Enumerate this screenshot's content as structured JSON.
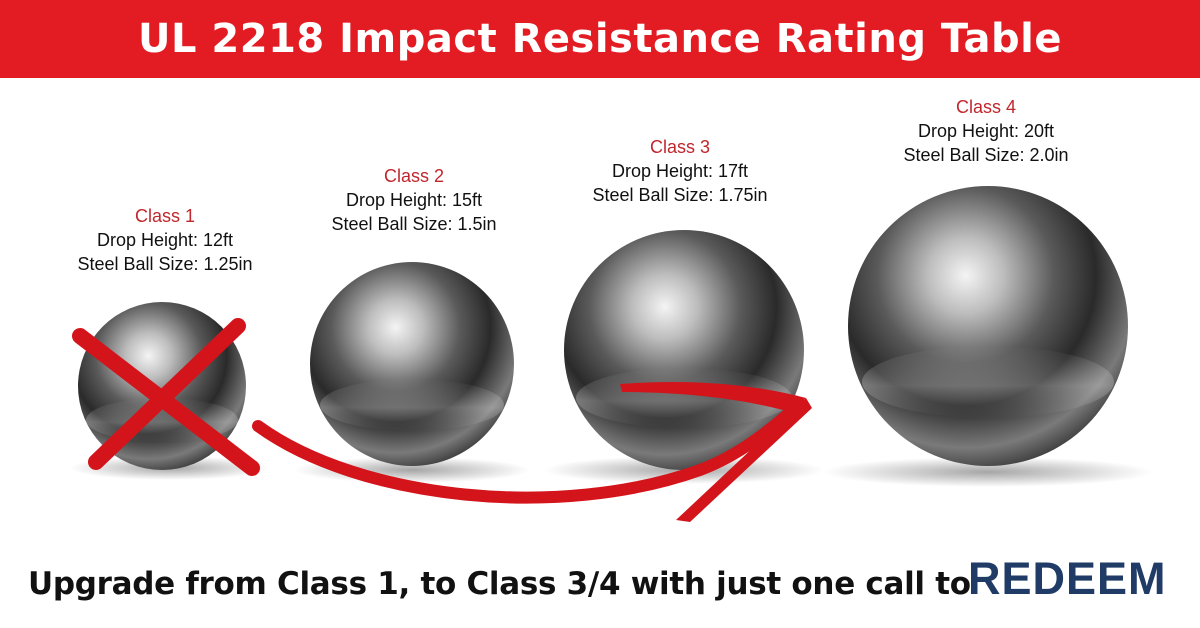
{
  "header": {
    "title": "UL 2218 Impact Resistance Rating Table"
  },
  "classes": [
    {
      "label": "Class 1",
      "drop_height": "Drop Height: 12ft",
      "ball_size": "Steel Ball Size: 1.25in"
    },
    {
      "label": "Class 2",
      "drop_height": "Drop Height: 15ft",
      "ball_size": "Steel Ball Size: 1.5in"
    },
    {
      "label": "Class 3",
      "drop_height": "Drop Height: 17ft",
      "ball_size": "Steel Ball Size: 1.75in"
    },
    {
      "label": "Class 4",
      "drop_height": "Drop Height: 20ft",
      "ball_size": "Steel Ball Size: 2.0in"
    }
  ],
  "footer": {
    "text": "Upgrade from Class 1, to Class 3/4 with just one call to",
    "brand": "REDEEM"
  },
  "colors": {
    "banner": "#e31b23",
    "class_label": "#c0272d",
    "brand": "#1f3b66",
    "marker": "#d4141b"
  }
}
